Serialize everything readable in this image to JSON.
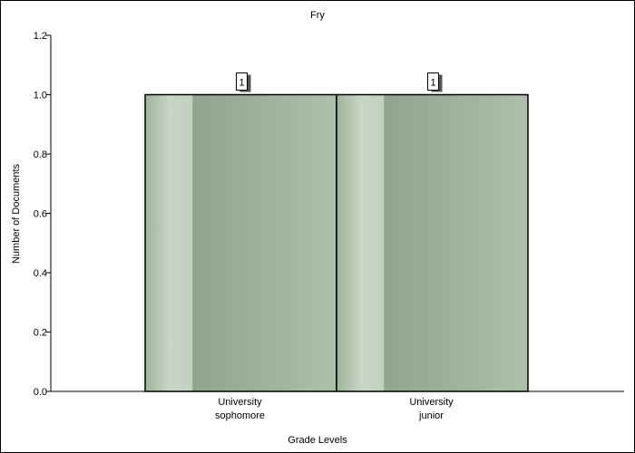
{
  "chart_data": {
    "type": "bar",
    "title": "Fry",
    "xlabel": "Grade Levels",
    "ylabel": "Number of Documents",
    "categories": [
      [
        "University",
        "sophomore"
      ],
      [
        "University",
        "junior"
      ]
    ],
    "values": [
      1,
      1
    ],
    "data_labels": [
      "1",
      "1"
    ],
    "ylim": [
      0,
      1.2
    ],
    "yticks": [
      "0.0",
      "0.2",
      "0.4",
      "0.6",
      "0.8",
      "1.0",
      "1.2"
    ],
    "grid": false,
    "legend": "none",
    "colors": {
      "bar_dark": "#8fa68c",
      "bar_light": "#c8d5c5",
      "bar_border": "#000000",
      "axis": "#000000"
    }
  }
}
